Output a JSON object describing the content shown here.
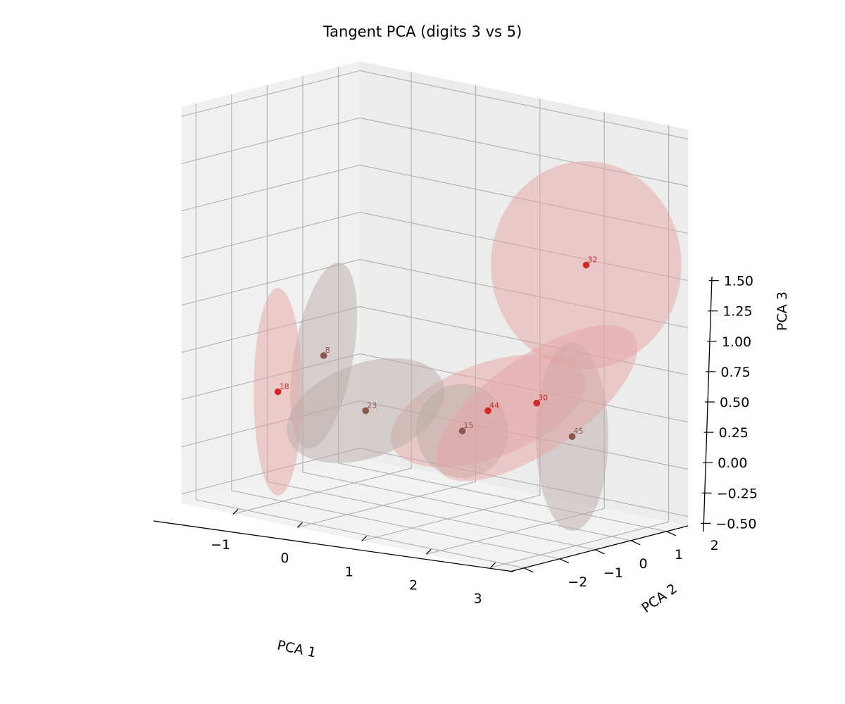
{
  "chart_data": {
    "type": "scatter",
    "projection": "3d",
    "title": "Tangent PCA (digits 3 vs 5)",
    "xlabel": "PCA 1",
    "ylabel": "PCA 2",
    "zlabel": "PCA 3",
    "xlim": [
      -1.8,
      3.3
    ],
    "ylim": [
      -2.4,
      2.6
    ],
    "zlim": [
      -0.55,
      1.55
    ],
    "xticks": [
      {
        "v": -1,
        "label": "−1"
      },
      {
        "v": 0,
        "label": "0"
      },
      {
        "v": 1,
        "label": "1"
      },
      {
        "v": 2,
        "label": "2"
      },
      {
        "v": 3,
        "label": "3"
      }
    ],
    "yticks": [
      {
        "v": -2,
        "label": "−2"
      },
      {
        "v": -1,
        "label": "−1"
      },
      {
        "v": 0,
        "label": "0"
      },
      {
        "v": 1,
        "label": "1"
      },
      {
        "v": 2,
        "label": "2"
      }
    ],
    "zticks": [
      {
        "v": -0.5,
        "label": "−0.50"
      },
      {
        "v": -0.25,
        "label": "−0.25"
      },
      {
        "v": 0,
        "label": "0.00"
      },
      {
        "v": 0.25,
        "label": "0.25"
      },
      {
        "v": 0.5,
        "label": "0.50"
      },
      {
        "v": 0.75,
        "label": "0.75"
      },
      {
        "v": 1.0,
        "label": "1.00"
      },
      {
        "v": 1.25,
        "label": "1.25"
      },
      {
        "v": 1.5,
        "label": "1.50"
      }
    ],
    "grid": true,
    "colors": {
      "digit3": "#8c564b",
      "digit5": "#d62728"
    },
    "points": [
      {
        "label": "8",
        "digit": 3,
        "x": -1.42,
        "y": 0.9,
        "z": 0.1,
        "radii": [
          0.45,
          0.75,
          0.5
        ],
        "tilt": 10
      },
      {
        "label": "18",
        "digit": 5,
        "x": -1.55,
        "y": -0.15,
        "z": -0.05,
        "radii": [
          0.12,
          1.1,
          0.55
        ],
        "tilt": 0
      },
      {
        "label": "23",
        "digit": 3,
        "x": 0.34,
        "y": -1.1,
        "z": 0.03,
        "radii": [
          1.25,
          0.85,
          0.25
        ],
        "tilt": -20
      },
      {
        "label": "15",
        "digit": 3,
        "x": 1.72,
        "y": -0.88,
        "z": 0.01,
        "radii": [
          0.7,
          0.6,
          0.25
        ],
        "tilt": -15
      },
      {
        "label": "44",
        "digit": 5,
        "x": 1.2,
        "y": 0.78,
        "z": 0.0,
        "radii": [
          1.55,
          0.9,
          0.25
        ],
        "tilt": -20
      },
      {
        "label": "45",
        "digit": 3,
        "x": 2.79,
        "y": 0.27,
        "z": 0.0,
        "radii": [
          0.55,
          1.0,
          0.5
        ],
        "tilt": 0
      },
      {
        "label": "32",
        "digit": 5,
        "x": 2.41,
        "y": 1.35,
        "z": 0.83,
        "radii": [
          1.45,
          1.25,
          0.55
        ],
        "tilt": 0
      },
      {
        "label": "30",
        "digit": 5,
        "x": 3.07,
        "y": -1.23,
        "z": 0.27,
        "radii": [
          1.8,
          0.3,
          0.25
        ],
        "tilt": -35
      }
    ]
  }
}
